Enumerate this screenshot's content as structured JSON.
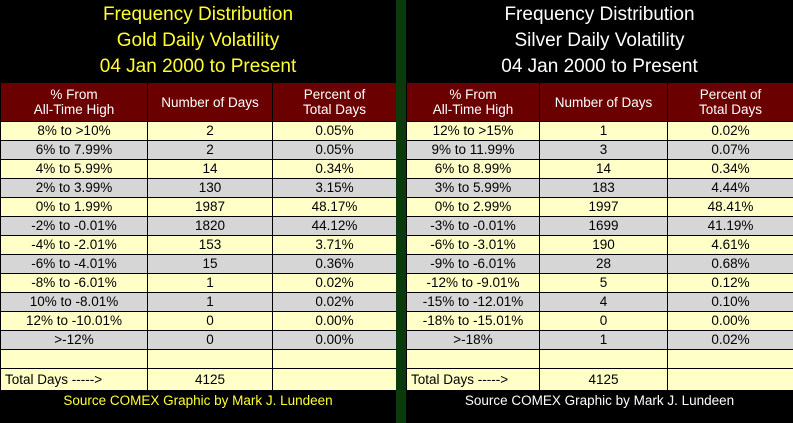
{
  "gold": {
    "title_line1": "Frequency Distribution",
    "title_line2": "Gold Daily Volatility",
    "title_line3": "04 Jan 2000 to Present",
    "headers": [
      "% From\nAll-Time High",
      "Number of Days",
      "Percent of\nTotal Days"
    ],
    "rows": [
      [
        "8% to >10%",
        "2",
        "0.05%"
      ],
      [
        "6% to 7.99%",
        "2",
        "0.05%"
      ],
      [
        "4% to 5.99%",
        "14",
        "0.34%"
      ],
      [
        "2% to 3.99%",
        "130",
        "3.15%"
      ],
      [
        "0% to 1.99%",
        "1987",
        "48.17%"
      ],
      [
        "-2% to -0.01%",
        "1820",
        "44.12%"
      ],
      [
        "-4% to -2.01%",
        "153",
        "3.71%"
      ],
      [
        "-6% to -4.01%",
        "15",
        "0.36%"
      ],
      [
        "-8% to -6.01%",
        "1",
        "0.02%"
      ],
      [
        "10% to -8.01%",
        "1",
        "0.02%"
      ],
      [
        "12% to -10.01%",
        "0",
        "0.00%"
      ],
      [
        ">-12%",
        "0",
        "0.00%"
      ],
      [
        "",
        "",
        ""
      ]
    ],
    "total_label": "Total Days ----->",
    "total_value": "4125",
    "source": "Source COMEX   Graphic by Mark J. Lundeen"
  },
  "silver": {
    "title_line1": "Frequency Distribution",
    "title_line2": "Silver Daily Volatility",
    "title_line3": "04 Jan 2000 to Present",
    "headers": [
      "% From\nAll-Time High",
      "Number of Days",
      "Percent of\nTotal Days"
    ],
    "rows": [
      [
        "12% to >15%",
        "1",
        "0.02%"
      ],
      [
        "9% to 11.99%",
        "3",
        "0.07%"
      ],
      [
        "6% to 8.99%",
        "14",
        "0.34%"
      ],
      [
        "3% to 5.99%",
        "183",
        "4.44%"
      ],
      [
        "0% to 2.99%",
        "1997",
        "48.41%"
      ],
      [
        "-3% to -0.01%",
        "1699",
        "41.19%"
      ],
      [
        "-6% to -3.01%",
        "190",
        "4.61%"
      ],
      [
        "-9% to -6.01%",
        "28",
        "0.68%"
      ],
      [
        "-12% to -9.01%",
        "5",
        "0.12%"
      ],
      [
        "-15% to -12.01%",
        "4",
        "0.10%"
      ],
      [
        "-18% to -15.01%",
        "0",
        "0.00%"
      ],
      [
        ">-18%",
        "1",
        "0.02%"
      ],
      [
        "",
        "",
        ""
      ]
    ],
    "total_label": "Total Days ----->",
    "total_value": "4125",
    "source": "Source COMEX   Graphic by Mark J. Lundeen"
  }
}
